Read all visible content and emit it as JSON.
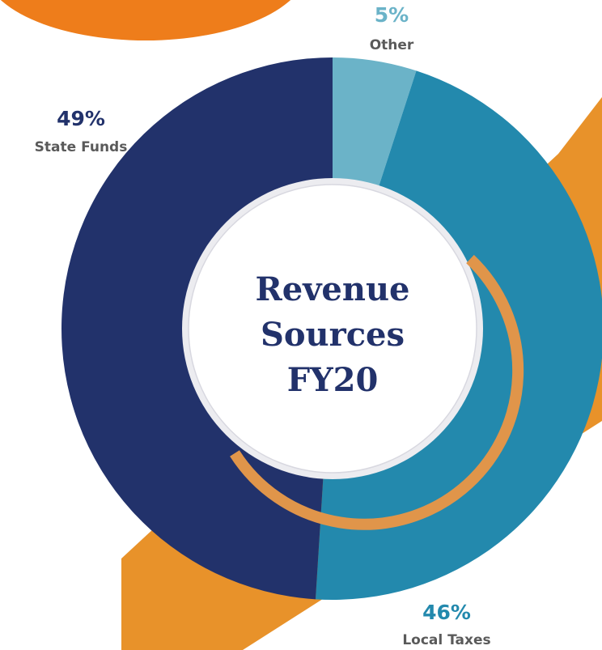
{
  "chart_data": {
    "type": "pie",
    "title": "Revenue Sources FY20",
    "categories": [
      "Other",
      "Local Taxes",
      "State Funds"
    ],
    "values": [
      5,
      46,
      49
    ],
    "value_labels": [
      "5%",
      "46%",
      "49%"
    ],
    "colors": [
      "#6bb3c8",
      "#2389ad",
      "#22326b"
    ]
  }
}
